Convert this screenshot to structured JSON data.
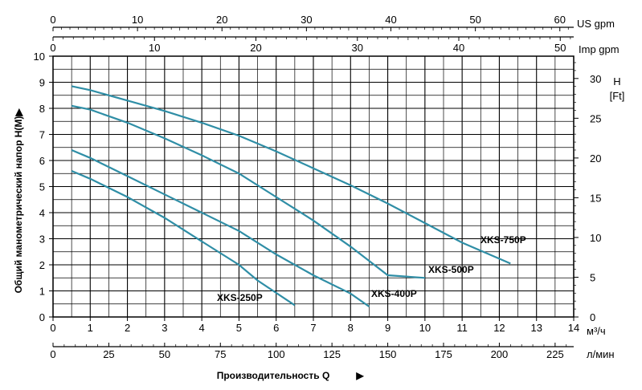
{
  "chart_data": {
    "type": "line",
    "ylabel": "Общий манометрический напор  H(M)",
    "ylabel_arrow": "▶",
    "xlabel": "Производительность Q",
    "xlabel_arrow": "▶",
    "grid": true,
    "curve_color": "#2f8ea6",
    "x_axis": {
      "unit": "м³/ч",
      "min": 0,
      "max": 14,
      "ticks": [
        0,
        1,
        2,
        3,
        4,
        5,
        6,
        7,
        8,
        9,
        10,
        11,
        12,
        13,
        14
      ]
    },
    "x_axis_lpm": {
      "unit": "л/мин",
      "ticks": [
        0,
        25,
        50,
        75,
        100,
        125,
        150,
        175,
        200,
        225
      ]
    },
    "x_axis_usgpm": {
      "unit": "US  gpm",
      "ticks": [
        0,
        10,
        20,
        30,
        40,
        50,
        60
      ]
    },
    "x_axis_impgpm": {
      "unit": "Imp gpm",
      "ticks": [
        0,
        10,
        20,
        30,
        40,
        50
      ]
    },
    "y_axis": {
      "unit": "",
      "min": 0,
      "max": 10,
      "ticks": [
        0,
        1,
        2,
        3,
        4,
        5,
        6,
        7,
        8,
        9,
        10
      ]
    },
    "y_axis_ft": {
      "unit_line1": "H",
      "unit_line2": "[Ft]",
      "ticks": [
        0,
        5,
        10,
        15,
        20,
        25,
        30
      ]
    },
    "series": [
      {
        "name": "XKS-250P",
        "x": [
          0.5,
          1,
          2,
          3,
          4,
          5,
          5.5,
          6.5
        ],
        "y": [
          5.6,
          5.3,
          4.6,
          3.8,
          2.9,
          2.0,
          1.4,
          0.45
        ]
      },
      {
        "name": "XKS-400P",
        "x": [
          0.5,
          1,
          2,
          3,
          4,
          5,
          6,
          7,
          8,
          8.5
        ],
        "y": [
          6.4,
          6.1,
          5.4,
          4.7,
          4.0,
          3.3,
          2.4,
          1.6,
          0.9,
          0.4
        ]
      },
      {
        "name": "XKS-500P",
        "x": [
          0.5,
          1,
          2,
          3,
          4,
          5,
          6,
          7,
          8,
          9,
          10
        ],
        "y": [
          8.1,
          7.95,
          7.45,
          6.85,
          6.2,
          5.5,
          4.6,
          3.7,
          2.7,
          1.6,
          1.5
        ]
      },
      {
        "name": "XKS-750P",
        "x": [
          0.5,
          1,
          2,
          3,
          4,
          5,
          6,
          7,
          8,
          9,
          10,
          11,
          12.3
        ],
        "y": [
          8.85,
          8.7,
          8.3,
          7.9,
          7.45,
          6.95,
          6.35,
          5.7,
          5.05,
          4.35,
          3.6,
          2.85,
          2.05
        ]
      }
    ],
    "legend_placement": "labels on curves"
  }
}
